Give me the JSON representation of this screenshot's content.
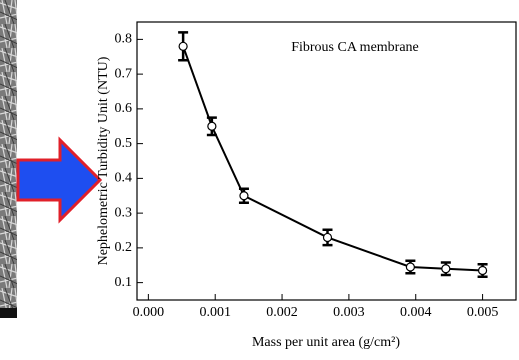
{
  "chart_data": {
    "type": "line",
    "annotation": "Fibrous CA membrane",
    "x_label": "Mass per unit area (g/cm²)",
    "y_label": "Nephelometric Turbidity Unit (NTU)",
    "x": [
      0.00052,
      0.00095,
      0.00143,
      0.00268,
      0.00392,
      0.00445,
      0.005
    ],
    "series": [
      {
        "color": "#000000",
        "values": [
          0.78,
          0.55,
          0.35,
          0.23,
          0.145,
          0.14,
          0.135
        ],
        "error": [
          0.04,
          0.025,
          0.02,
          0.022,
          0.018,
          0.018,
          0.018
        ]
      }
    ],
    "xlim": [
      -0.00017,
      0.0055
    ],
    "ylim": [
      0.05,
      0.85
    ],
    "xticks": [
      {
        "value": 0,
        "label": "0.000"
      },
      {
        "value": 0.001,
        "label": "0.001"
      },
      {
        "value": 0.002,
        "label": "0.002"
      },
      {
        "value": 0.003,
        "label": "0.003"
      },
      {
        "value": 0.004,
        "label": "0.004"
      },
      {
        "value": 0.005,
        "label": "0.005"
      }
    ],
    "yticks": [
      0.1,
      0.2,
      0.3,
      0.4,
      0.5,
      0.6,
      0.7,
      0.8
    ]
  }
}
